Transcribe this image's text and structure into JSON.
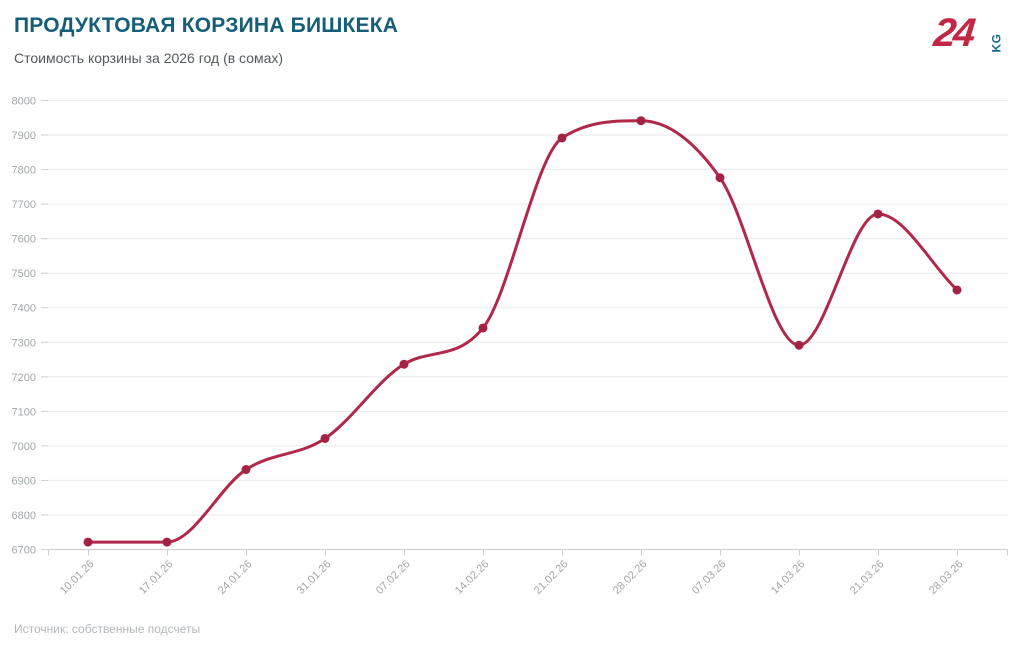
{
  "header": {
    "title": "ПРОДУКТОВАЯ КОРЗИНА БИШКЕКА",
    "subtitle": "Стоимость корзины за 2026 год (в сомах)"
  },
  "logo": {
    "number": "24",
    "suffix": "KG",
    "number_color": "#c22746",
    "suffix_color": "#1b6d86"
  },
  "chart_data": {
    "type": "line",
    "title": "Продуктовая корзина Бишкека",
    "subtitle": "Стоимость корзины за 2026 год (в сомах)",
    "categories": [
      "10.01.26",
      "17.01.26",
      "24.01.26",
      "31.01.26",
      "07.02.26",
      "14.02.26",
      "21.02.26",
      "28.02.26",
      "07.03.26",
      "14.03.26",
      "21.03.26",
      "28.03.26"
    ],
    "values": [
      6720,
      6720,
      6930,
      7020,
      7235,
      7340,
      7890,
      7940,
      7775,
      7290,
      7670,
      7450
    ],
    "xlabel": "",
    "ylabel": "",
    "ylim": [
      6700,
      8000
    ],
    "ytick_step": 100,
    "grid": true,
    "legend": "none",
    "smooth": true,
    "line_color": "#b0284a",
    "marker_color": "#a42345",
    "grid_color": "#e9eaec",
    "axis_color": "#ccd0d3",
    "label_color": "#a3a7aa"
  },
  "footer": {
    "source": "Источник: собственные подсчеты"
  }
}
